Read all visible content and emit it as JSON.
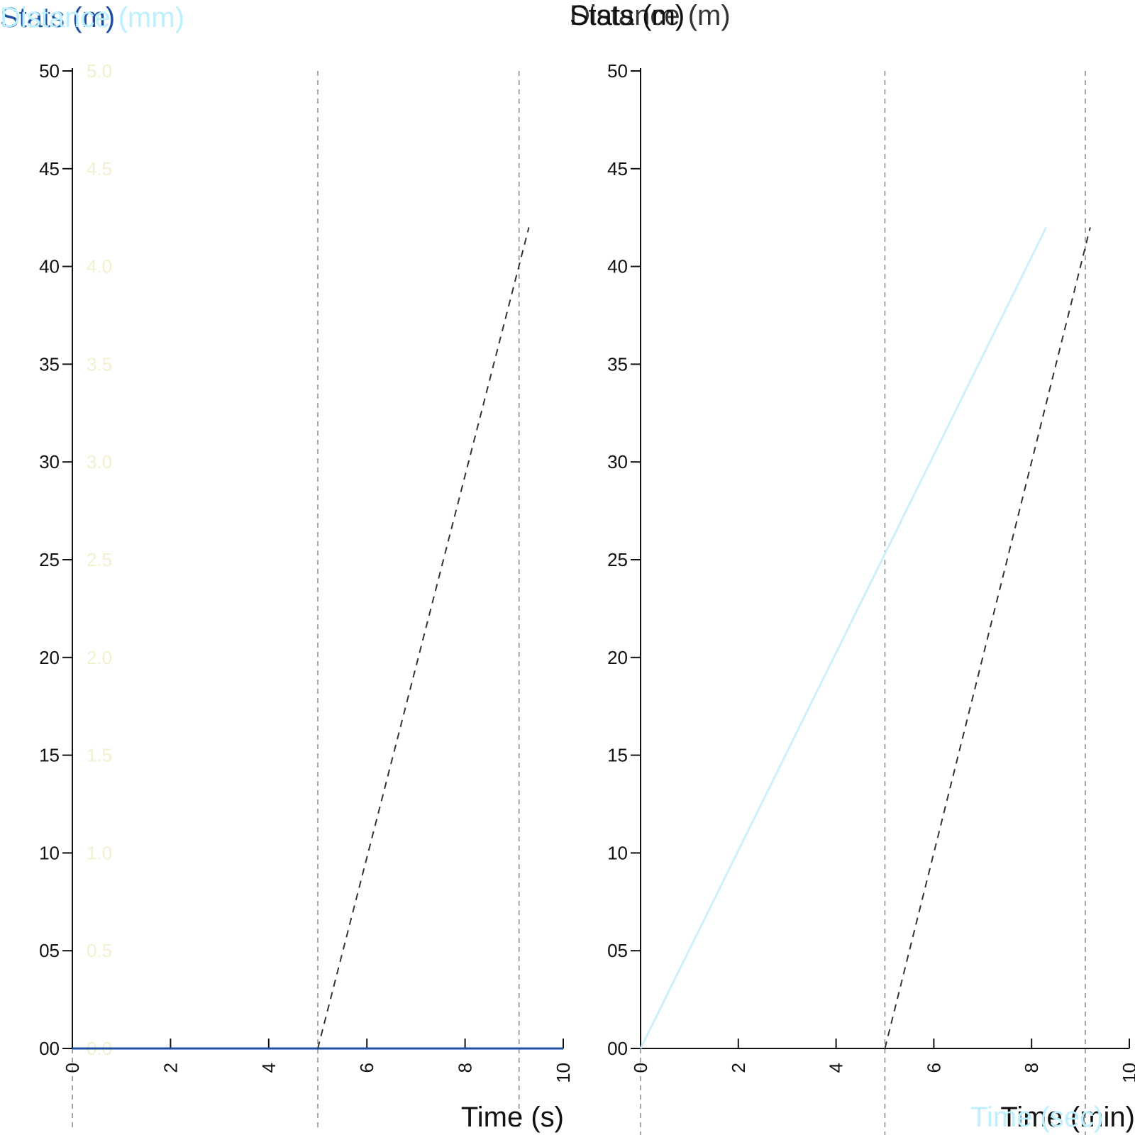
{
  "colors": {
    "axis": "#111111",
    "series_1": "#1f4fa0",
    "series_2": "#cfeffc",
    "dashed": "#333333",
    "vline": "#888888",
    "faint_label": "#f3f0cf",
    "title_light": "#bdf0ff"
  },
  "chart_data": [
    {
      "type": "line",
      "title": "",
      "ylabel": "Distance (mm)",
      "ylabel_overlay": "Stats (m)",
      "xlabel": "Time (s)",
      "xlim": [
        0,
        10
      ],
      "ylim": [
        0,
        50
      ],
      "x_ticks": [
        0,
        2,
        4,
        6,
        8,
        10
      ],
      "x_tick_labels": [
        "0",
        "2",
        "4",
        "6",
        "8",
        "10"
      ],
      "y_ticks": [
        0,
        5,
        10,
        15,
        20,
        25,
        30,
        35,
        40,
        45,
        50
      ],
      "y_tick_labels": [
        "00",
        "05",
        "10",
        "15",
        "20",
        "25",
        "30",
        "35",
        "40",
        "45",
        "50"
      ],
      "y2_tick_labels": [
        "0.0",
        "0.5",
        "1.0",
        "1.5",
        "2.0",
        "2.5",
        "3.0",
        "3.5",
        "4.0",
        "4.5",
        "5.0"
      ],
      "vlines": [
        0,
        5,
        9.1
      ],
      "series": [
        {
          "style": "solid",
          "x": [
            0,
            10
          ],
          "y": [
            0,
            0
          ]
        },
        {
          "style": "dashed",
          "x": [
            5,
            9.3
          ],
          "y": [
            0,
            42
          ]
        }
      ],
      "grid": false
    },
    {
      "type": "line",
      "title": "",
      "ylabel": "Distance (m)",
      "ylabel_overlay": "Stats (m)",
      "xlabel": "Time (min)",
      "xlabel_overlay": "Time (sec)",
      "xlim": [
        0,
        10
      ],
      "ylim": [
        0,
        50
      ],
      "x_ticks": [
        0,
        2,
        4,
        6,
        8,
        10
      ],
      "x_tick_labels": [
        "0",
        "2",
        "4",
        "6",
        "8",
        "10"
      ],
      "y_ticks": [
        0,
        5,
        10,
        15,
        20,
        25,
        30,
        35,
        40,
        45,
        50
      ],
      "y_tick_labels": [
        "00",
        "05",
        "10",
        "15",
        "20",
        "25",
        "30",
        "35",
        "40",
        "45",
        "50"
      ],
      "vlines": [
        0,
        5,
        9.1
      ],
      "series": [
        {
          "style": "solid",
          "x": [
            0,
            8.3
          ],
          "y": [
            0,
            42
          ]
        },
        {
          "style": "dashed",
          "x": [
            5,
            9.2
          ],
          "y": [
            0,
            42
          ]
        }
      ],
      "grid": false
    }
  ]
}
